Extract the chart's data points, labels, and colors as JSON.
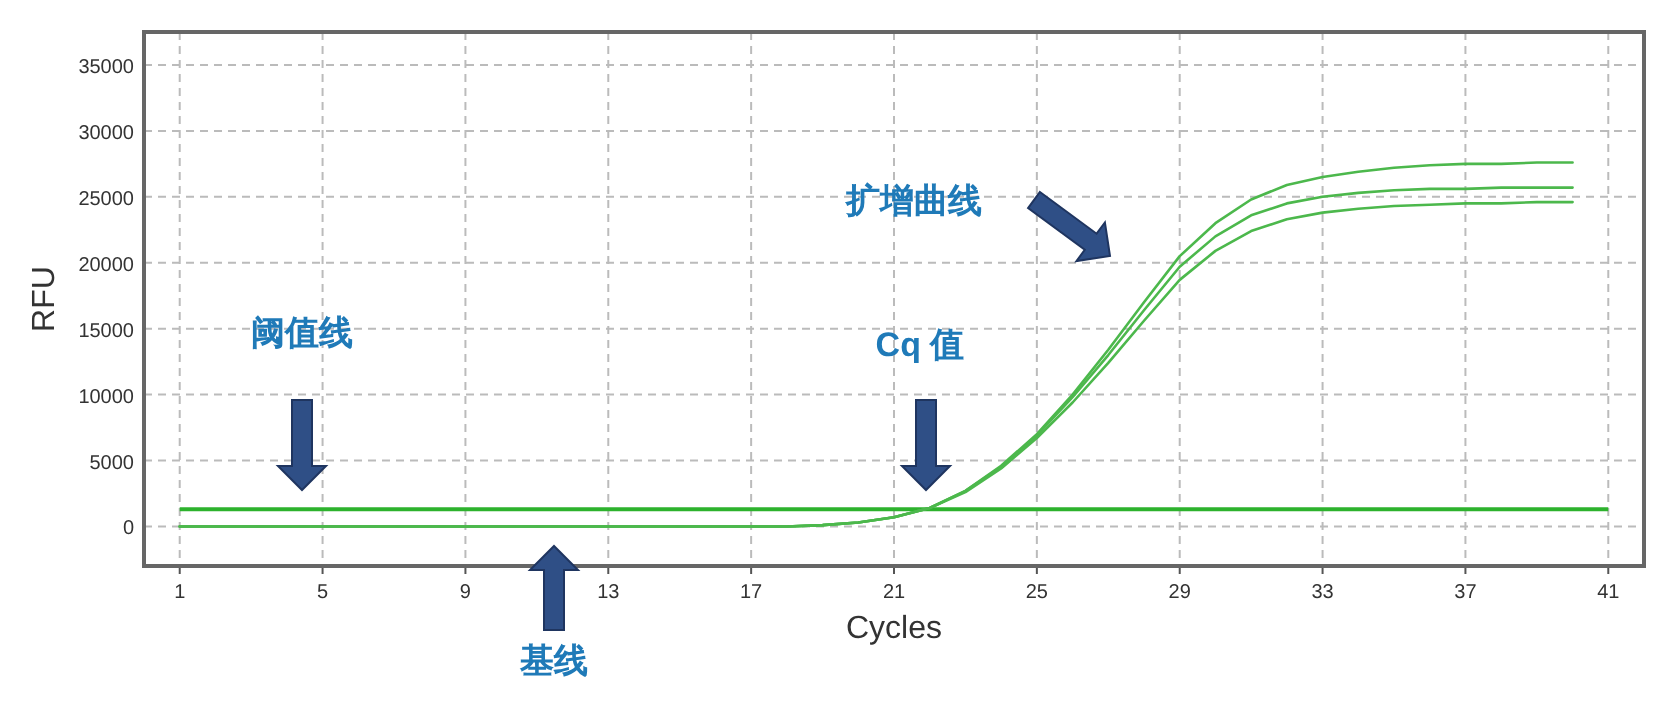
{
  "chart_data": {
    "type": "line",
    "xlabel": "Cycles",
    "ylabel": "RFU",
    "x": [
      1,
      2,
      3,
      4,
      5,
      6,
      7,
      8,
      9,
      10,
      11,
      12,
      13,
      14,
      15,
      16,
      17,
      18,
      19,
      20,
      21,
      22,
      23,
      24,
      25,
      26,
      27,
      28,
      29,
      30,
      31,
      32,
      33,
      34,
      35,
      36,
      37,
      38,
      39,
      40
    ],
    "series": [
      {
        "color": "#4cb84c",
        "values": [
          0,
          0,
          0,
          0,
          0,
          0,
          0,
          0,
          0,
          0,
          0,
          0,
          0,
          0,
          0,
          0,
          0,
          0,
          100,
          300,
          700,
          1400,
          2700,
          4600,
          7000,
          10000,
          13400,
          17000,
          20500,
          23000,
          24800,
          25900,
          26500,
          26900,
          27200,
          27400,
          27500,
          27500,
          27600,
          27600
        ]
      },
      {
        "color": "#4cb84c",
        "values": [
          0,
          0,
          0,
          0,
          0,
          0,
          0,
          0,
          0,
          0,
          0,
          0,
          0,
          0,
          0,
          0,
          0,
          0,
          100,
          300,
          700,
          1400,
          2700,
          4500,
          6900,
          9800,
          13000,
          16400,
          19700,
          22000,
          23600,
          24500,
          25000,
          25300,
          25500,
          25600,
          25600,
          25700,
          25700,
          25700
        ]
      },
      {
        "color": "#4cb84c",
        "values": [
          0,
          0,
          0,
          0,
          0,
          0,
          0,
          0,
          0,
          0,
          0,
          0,
          0,
          0,
          0,
          0,
          0,
          0,
          100,
          300,
          700,
          1400,
          2600,
          4400,
          6700,
          9400,
          12400,
          15600,
          18700,
          20900,
          22400,
          23300,
          23800,
          24100,
          24300,
          24400,
          24500,
          24500,
          24600,
          24600
        ]
      }
    ],
    "xlim": [
      0,
      42
    ],
    "ylim": [
      -3000,
      37500
    ],
    "xticks": [
      1,
      5,
      9,
      13,
      17,
      21,
      25,
      29,
      33,
      37,
      41
    ],
    "yticks": [
      0,
      5000,
      10000,
      15000,
      20000,
      25000,
      30000,
      35000
    ],
    "grid": true,
    "ref_lines": [
      {
        "axis": "y",
        "value": 1300,
        "color": "#2db22d"
      }
    ],
    "annotations": [
      "扩增曲线",
      "阈值线",
      "Cq 值",
      "基线"
    ]
  }
}
